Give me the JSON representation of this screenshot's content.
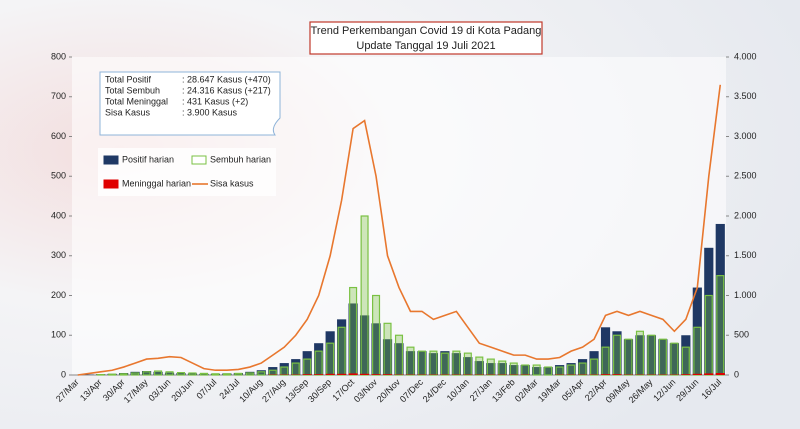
{
  "chart_data": {
    "type": "bar",
    "title": "Trend Perkembangan Covid 19 di Kota Padang",
    "subtitle": "Update Tanggal  19 Juli 2021",
    "info": [
      {
        "label": "Total Positif",
        "value": ": 28.647 Kasus  (+470)"
      },
      {
        "label": "Total Sembuh",
        "value": ": 24.316 Kasus  (+217)"
      },
      {
        "label": "Total Meninggal",
        "value": ":       431 Kasus  (+2)"
      },
      {
        "label": "Sisa Kasus",
        "value": ":     3.900 Kasus"
      }
    ],
    "categories": [
      "27/Mar",
      null,
      "13/Apr",
      null,
      "30/Apr",
      null,
      "17/May",
      null,
      "03/Jun",
      null,
      "20/Jun",
      null,
      "07/Jul",
      null,
      "24/Jul",
      null,
      "10/Aug",
      null,
      "27/Aug",
      null,
      "13/Sep",
      null,
      "30/Sep",
      null,
      "17/Oct",
      null,
      "03/Nov",
      null,
      "20/Nov",
      null,
      "07/Dec",
      null,
      "24/Dec",
      null,
      "10/Jan",
      null,
      "27/Jan",
      null,
      "13/Feb",
      null,
      "02/Mar",
      null,
      "19/Mar",
      null,
      "05/Apr",
      null,
      "22/Apr",
      null,
      "09/May",
      null,
      "26/May",
      null,
      "12/Jun",
      null,
      "29/Jun",
      null,
      "16/Jul"
    ],
    "series": [
      {
        "name": "Positif harian",
        "type": "bar",
        "color": "#1f3864",
        "values": [
          0,
          1,
          2,
          3,
          5,
          8,
          10,
          8,
          6,
          5,
          4,
          3,
          3,
          4,
          5,
          8,
          12,
          20,
          30,
          40,
          60,
          80,
          110,
          140,
          180,
          150,
          130,
          90,
          80,
          60,
          60,
          55,
          60,
          55,
          45,
          35,
          30,
          30,
          25,
          25,
          20,
          20,
          25,
          30,
          40,
          60,
          120,
          110,
          90,
          100,
          100,
          90,
          80,
          100,
          220,
          320,
          380
        ]
      },
      {
        "name": "Sembuh harian",
        "type": "bar-outline",
        "color": "#7ac143",
        "values": [
          0,
          0,
          1,
          2,
          3,
          5,
          8,
          10,
          8,
          6,
          5,
          4,
          3,
          3,
          4,
          5,
          8,
          12,
          20,
          30,
          40,
          60,
          80,
          120,
          220,
          400,
          200,
          130,
          100,
          70,
          60,
          60,
          55,
          60,
          55,
          45,
          40,
          35,
          30,
          25,
          25,
          20,
          20,
          25,
          30,
          40,
          70,
          100,
          90,
          110,
          100,
          90,
          80,
          70,
          120,
          200,
          250
        ]
      },
      {
        "name": "Meninggal harian",
        "type": "bar",
        "color": "#e00000",
        "values": [
          0,
          0,
          0,
          0,
          0,
          0,
          0,
          0,
          0,
          0,
          0,
          0,
          0,
          0,
          0,
          0,
          0,
          1,
          1,
          1,
          2,
          2,
          3,
          3,
          4,
          3,
          2,
          2,
          1,
          1,
          1,
          1,
          1,
          1,
          1,
          1,
          1,
          1,
          1,
          1,
          0,
          0,
          1,
          1,
          1,
          1,
          2,
          2,
          1,
          1,
          1,
          1,
          1,
          2,
          3,
          4,
          5
        ]
      },
      {
        "name": "Sisa kasus",
        "type": "line",
        "axis": "y2",
        "color": "#e8772e",
        "values": [
          0,
          20,
          40,
          60,
          100,
          150,
          200,
          210,
          230,
          220,
          150,
          80,
          60,
          60,
          70,
          100,
          150,
          250,
          350,
          500,
          700,
          1000,
          1500,
          2200,
          3100,
          3200,
          2500,
          1500,
          1100,
          800,
          800,
          700,
          750,
          800,
          600,
          400,
          350,
          300,
          250,
          250,
          200,
          200,
          220,
          300,
          350,
          450,
          750,
          800,
          750,
          800,
          750,
          700,
          550,
          700,
          1100,
          2500,
          3650
        ]
      }
    ],
    "ylim": [
      0,
      800
    ],
    "yticks": [
      0,
      100,
      200,
      300,
      400,
      500,
      600,
      700,
      800
    ],
    "y2lim": [
      0,
      4000
    ],
    "y2ticks": [
      0,
      500,
      {
        "value": 1000,
        "label": "1.000"
      },
      {
        "value": 1500,
        "label": "1.500"
      },
      {
        "value": 2000,
        "label": "2.000"
      },
      {
        "value": 2500,
        "label": "2.500"
      },
      {
        "value": 3000,
        "label": "3.000"
      },
      {
        "value": 3500,
        "label": "3.500"
      },
      {
        "value": 4000,
        "label": "4.000"
      }
    ]
  }
}
